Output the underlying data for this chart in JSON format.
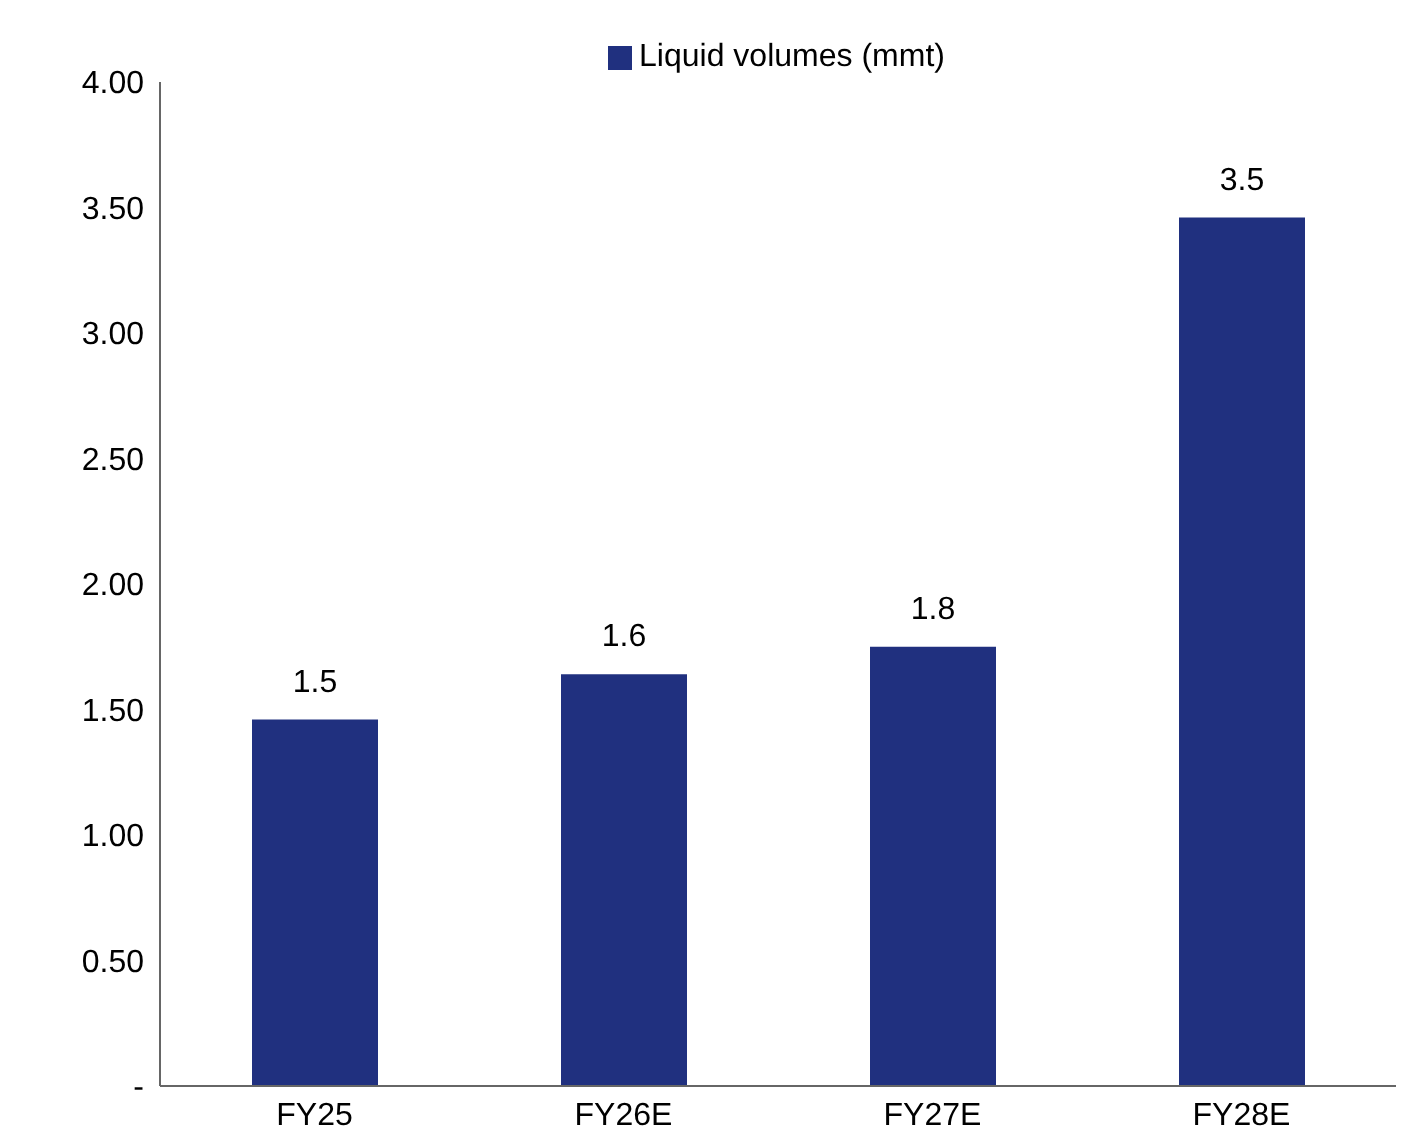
{
  "chart_data": {
    "type": "bar",
    "categories": [
      "FY25",
      "FY26E",
      "FY27E",
      "FY28E"
    ],
    "series": [
      {
        "name": "Liquid volumes (mmt)",
        "color": "#20307f",
        "values": [
          1.46,
          1.64,
          1.75,
          3.46
        ],
        "value_labels": [
          "1.5",
          "1.6",
          "1.8",
          "3.5"
        ]
      }
    ],
    "ylim": [
      0,
      4
    ],
    "yticks": [
      {
        "value": 0,
        "label": "-"
      },
      {
        "value": 0.5,
        "label": "0.50"
      },
      {
        "value": 1,
        "label": "1.00"
      },
      {
        "value": 1.5,
        "label": "1.50"
      },
      {
        "value": 2,
        "label": "2.00"
      },
      {
        "value": 2.5,
        "label": "2.50"
      },
      {
        "value": 3,
        "label": "3.00"
      },
      {
        "value": 3.5,
        "label": "3.50"
      },
      {
        "value": 4,
        "label": "4.00"
      }
    ],
    "grid": false,
    "legend": "top"
  }
}
